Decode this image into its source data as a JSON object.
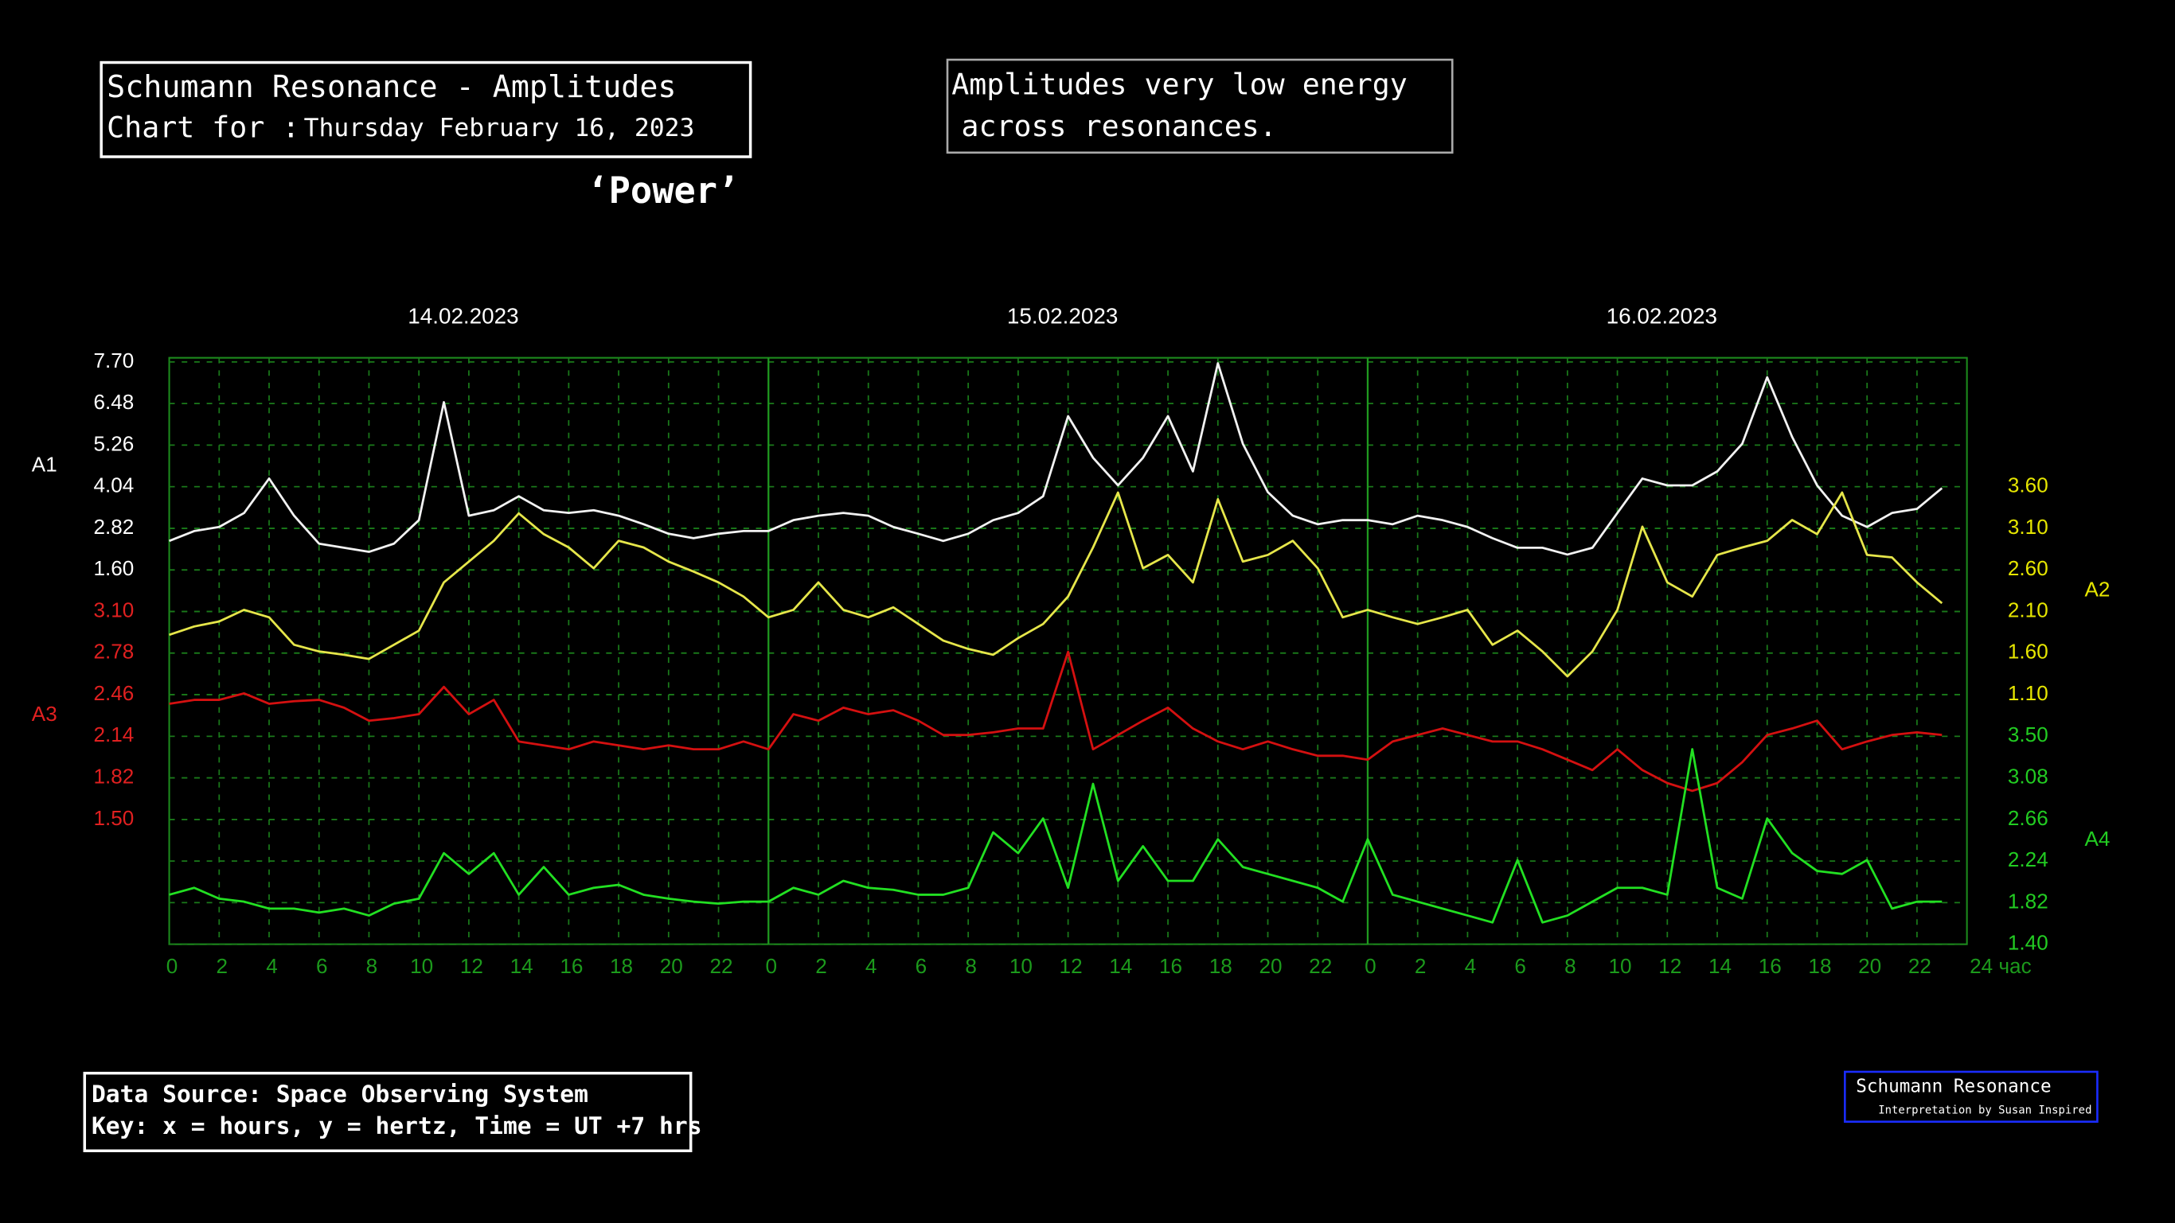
{
  "chart_data": {
    "type": "line",
    "title": "Schumann Resonance - Amplitudes",
    "chart_for_label": "Chart for :",
    "date": "Thursday February 16, 2023",
    "subtitle": "‘Power’",
    "note": [
      "Amplitudes very low energy",
      "across resonances."
    ],
    "source": [
      "Data Source: Space Observing System",
      "Key: x = hours, y = hertz, Time = UT +7 hrs"
    ],
    "credit": [
      "Schumann Resonance",
      "Interpretation by Susan Inspired"
    ],
    "day_labels": [
      "14.02.2023",
      "15.02.2023",
      "16.02.2023"
    ],
    "grid": true,
    "x": [
      0,
      1,
      2,
      3,
      4,
      5,
      6,
      7,
      8,
      9,
      10,
      11,
      12,
      13,
      14,
      15,
      16,
      17,
      18,
      19,
      20,
      21,
      22,
      23,
      24,
      25,
      26,
      27,
      28,
      29,
      30,
      31,
      32,
      33,
      34,
      35,
      36,
      37,
      38,
      39,
      40,
      41,
      42,
      43,
      44,
      45,
      46,
      47,
      48,
      49,
      50,
      51,
      52,
      53,
      54,
      55,
      56,
      57,
      58,
      59,
      60,
      61,
      62,
      63,
      64,
      65,
      66,
      67,
      68,
      69,
      70,
      71
    ],
    "xlim": [
      0,
      72
    ],
    "xticks": [
      0,
      2,
      4,
      6,
      8,
      10,
      12,
      14,
      16,
      18,
      20,
      22,
      {
        "value": 24,
        "label": "0"
      },
      {
        "value": 26,
        "label": "2"
      },
      {
        "value": 28,
        "label": "4"
      },
      {
        "value": 30,
        "label": "6"
      },
      {
        "value": 32,
        "label": "8"
      },
      {
        "value": 34,
        "label": "10"
      },
      {
        "value": 36,
        "label": "12"
      },
      {
        "value": 38,
        "label": "14"
      },
      {
        "value": 40,
        "label": "16"
      },
      {
        "value": 42,
        "label": "18"
      },
      {
        "value": 44,
        "label": "20"
      },
      {
        "value": 46,
        "label": "22"
      },
      {
        "value": 48,
        "label": "0"
      },
      {
        "value": 50,
        "label": "2"
      },
      {
        "value": 52,
        "label": "4"
      },
      {
        "value": 54,
        "label": "6"
      },
      {
        "value": 56,
        "label": "8"
      },
      {
        "value": 58,
        "label": "10"
      },
      {
        "value": 60,
        "label": "12"
      },
      {
        "value": 62,
        "label": "14"
      },
      {
        "value": 64,
        "label": "16"
      },
      {
        "value": 66,
        "label": "18"
      },
      {
        "value": 68,
        "label": "20"
      },
      {
        "value": 70,
        "label": "22"
      },
      {
        "value": 72,
        "label": "24 час"
      }
    ],
    "y_axes": [
      {
        "name": "A1",
        "side": "left",
        "color": "#ffffff",
        "ylim": [
          1.6,
          7.7
        ],
        "yticks": [
          {
            "value": 7.7,
            "label": "7.70"
          },
          6.48,
          5.26,
          4.04,
          2.82,
          {
            "value": 1.6,
            "label": "1.60"
          }
        ]
      },
      {
        "name": "A2",
        "side": "right",
        "color": "#e6e600",
        "ylim": [
          1.1,
          3.6
        ],
        "yticks": [
          {
            "value": 3.6,
            "label": "3.60"
          },
          {
            "value": 3.1,
            "label": "3.10"
          },
          {
            "value": 2.6,
            "label": "2.60"
          },
          {
            "value": 2.1,
            "label": "2.10"
          },
          {
            "value": 1.6,
            "label": "1.60"
          },
          {
            "value": 1.1,
            "label": "1.10"
          }
        ]
      },
      {
        "name": "A3",
        "side": "left",
        "color": "#e02020",
        "ylim": [
          1.5,
          3.1
        ],
        "yticks": [
          {
            "value": 3.1,
            "label": "3.10"
          },
          2.78,
          2.46,
          2.14,
          1.82,
          {
            "value": 1.5,
            "label": "1.50"
          }
        ]
      },
      {
        "name": "A4",
        "side": "right",
        "color": "#22cc22",
        "ylim": [
          1.4,
          3.5
        ],
        "yticks": [
          {
            "value": 3.5,
            "label": "3.50"
          },
          3.08,
          2.66,
          2.24,
          1.82,
          {
            "value": 1.4,
            "label": "1.40"
          }
        ]
      }
    ],
    "series": [
      {
        "name": "A1",
        "axis": "A1",
        "color": "#f2f2f2",
        "values": [
          2.45,
          2.74,
          2.86,
          3.27,
          4.28,
          3.19,
          2.37,
          2.25,
          2.13,
          2.37,
          3.06,
          6.52,
          3.19,
          3.35,
          3.76,
          3.35,
          3.27,
          3.35,
          3.19,
          2.94,
          2.66,
          2.53,
          2.66,
          2.74,
          2.74,
          3.06,
          3.19,
          3.27,
          3.19,
          2.86,
          2.66,
          2.45,
          2.66,
          3.06,
          3.27,
          3.76,
          6.11,
          4.89,
          4.08,
          4.89,
          6.11,
          4.49,
          7.66,
          5.3,
          3.88,
          3.19,
          2.94,
          3.06,
          3.06,
          2.94,
          3.19,
          3.06,
          2.86,
          2.53,
          2.25,
          2.25,
          2.05,
          2.25,
          3.27,
          4.28,
          4.08,
          4.08,
          4.49,
          5.3,
          7.25,
          5.5,
          4.08,
          3.19,
          2.86,
          3.27,
          3.39,
          4.0
        ]
      },
      {
        "name": "A2",
        "axis": "A2",
        "color": "#e6e64a",
        "values": [
          1.82,
          1.92,
          1.98,
          2.12,
          2.03,
          1.7,
          1.62,
          1.58,
          1.53,
          1.7,
          1.87,
          2.45,
          2.7,
          2.95,
          3.28,
          3.03,
          2.87,
          2.62,
          2.95,
          2.87,
          2.7,
          2.58,
          2.45,
          2.28,
          2.03,
          2.12,
          2.45,
          2.12,
          2.03,
          2.15,
          1.95,
          1.75,
          1.65,
          1.58,
          1.78,
          1.95,
          2.28,
          2.87,
          3.53,
          2.62,
          2.78,
          2.45,
          3.45,
          2.7,
          2.78,
          2.95,
          2.62,
          2.03,
          2.12,
          2.03,
          1.95,
          2.03,
          2.12,
          1.7,
          1.87,
          1.62,
          1.32,
          1.62,
          2.12,
          3.12,
          2.45,
          2.28,
          2.78,
          2.87,
          2.95,
          3.2,
          3.03,
          3.53,
          2.78,
          2.75,
          2.45,
          2.2
        ]
      },
      {
        "name": "A3",
        "axis": "A3",
        "color": "#d41010",
        "values": [
          2.39,
          2.42,
          2.42,
          2.47,
          2.39,
          2.41,
          2.42,
          2.36,
          2.26,
          2.28,
          2.31,
          2.52,
          2.31,
          2.42,
          2.1,
          2.07,
          2.04,
          2.1,
          2.07,
          2.04,
          2.07,
          2.04,
          2.04,
          2.1,
          2.04,
          2.31,
          2.26,
          2.36,
          2.31,
          2.34,
          2.26,
          2.15,
          2.15,
          2.17,
          2.2,
          2.2,
          2.79,
          2.04,
          2.15,
          2.26,
          2.36,
          2.2,
          2.1,
          2.04,
          2.1,
          2.04,
          1.99,
          1.99,
          1.96,
          2.1,
          2.15,
          2.2,
          2.15,
          2.1,
          2.1,
          2.04,
          1.96,
          1.88,
          2.04,
          1.88,
          1.78,
          1.72,
          1.78,
          1.94,
          2.15,
          2.2,
          2.26,
          2.04,
          2.1,
          2.15,
          2.17,
          2.15
        ]
      },
      {
        "name": "A4",
        "axis": "A4",
        "color": "#22e022",
        "values": [
          1.9,
          1.97,
          1.86,
          1.83,
          1.76,
          1.76,
          1.72,
          1.76,
          1.69,
          1.81,
          1.86,
          2.32,
          2.11,
          2.32,
          1.9,
          2.18,
          1.9,
          1.97,
          2.0,
          1.9,
          1.86,
          1.83,
          1.81,
          1.83,
          1.83,
          1.97,
          1.9,
          2.04,
          1.97,
          1.95,
          1.9,
          1.9,
          1.97,
          2.53,
          2.32,
          2.67,
          1.97,
          3.02,
          2.04,
          2.39,
          2.04,
          2.04,
          2.46,
          2.18,
          2.11,
          2.04,
          1.97,
          1.83,
          2.46,
          1.9,
          1.83,
          1.76,
          1.69,
          1.62,
          2.25,
          1.62,
          1.69,
          1.83,
          1.97,
          1.97,
          1.9,
          3.37,
          1.97,
          1.86,
          2.67,
          2.32,
          2.14,
          2.11,
          2.25,
          1.76,
          1.83,
          1.83
        ]
      }
    ]
  }
}
